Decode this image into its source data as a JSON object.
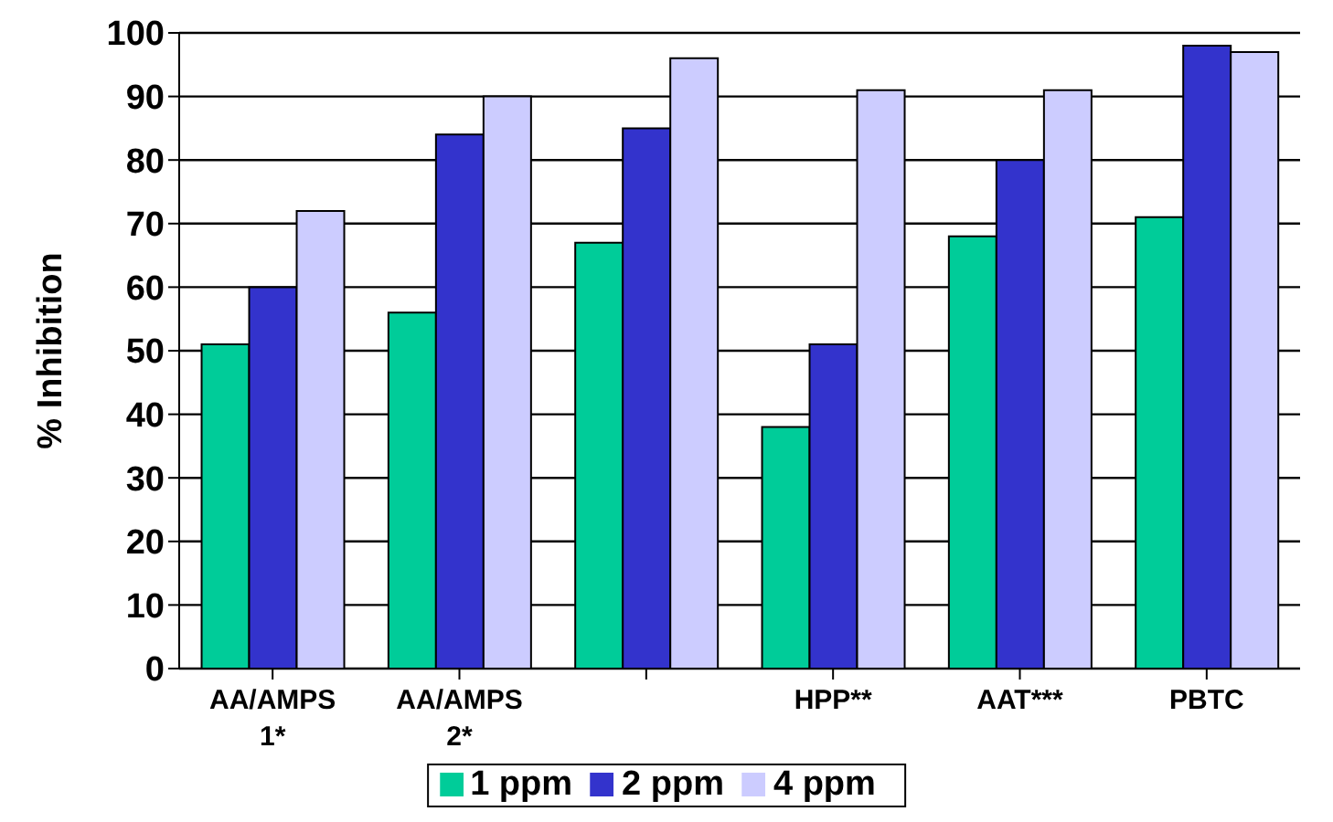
{
  "chart_data": {
    "type": "bar",
    "ylabel": "% Inhibition",
    "categories": [
      "AA/AMPS\n1*",
      "AA/AMPS\n2*",
      null,
      "HPP**",
      "AAT***",
      "PBTC"
    ],
    "series": [
      {
        "name": "1 ppm",
        "color": "#00cc99",
        "values": [
          51,
          56,
          67,
          38,
          68,
          71
        ]
      },
      {
        "name": "2 ppm",
        "color": "#3333cc",
        "values": [
          60,
          84,
          85,
          51,
          80,
          98
        ]
      },
      {
        "name": "4 ppm",
        "color": "#ccccff",
        "values": [
          72,
          90,
          96,
          91,
          91,
          97
        ]
      }
    ],
    "ylim": [
      0,
      100
    ],
    "yticks": [
      0,
      10,
      20,
      30,
      40,
      50,
      60,
      70,
      80,
      90,
      100
    ],
    "grid": "y",
    "legend": "bottom"
  }
}
